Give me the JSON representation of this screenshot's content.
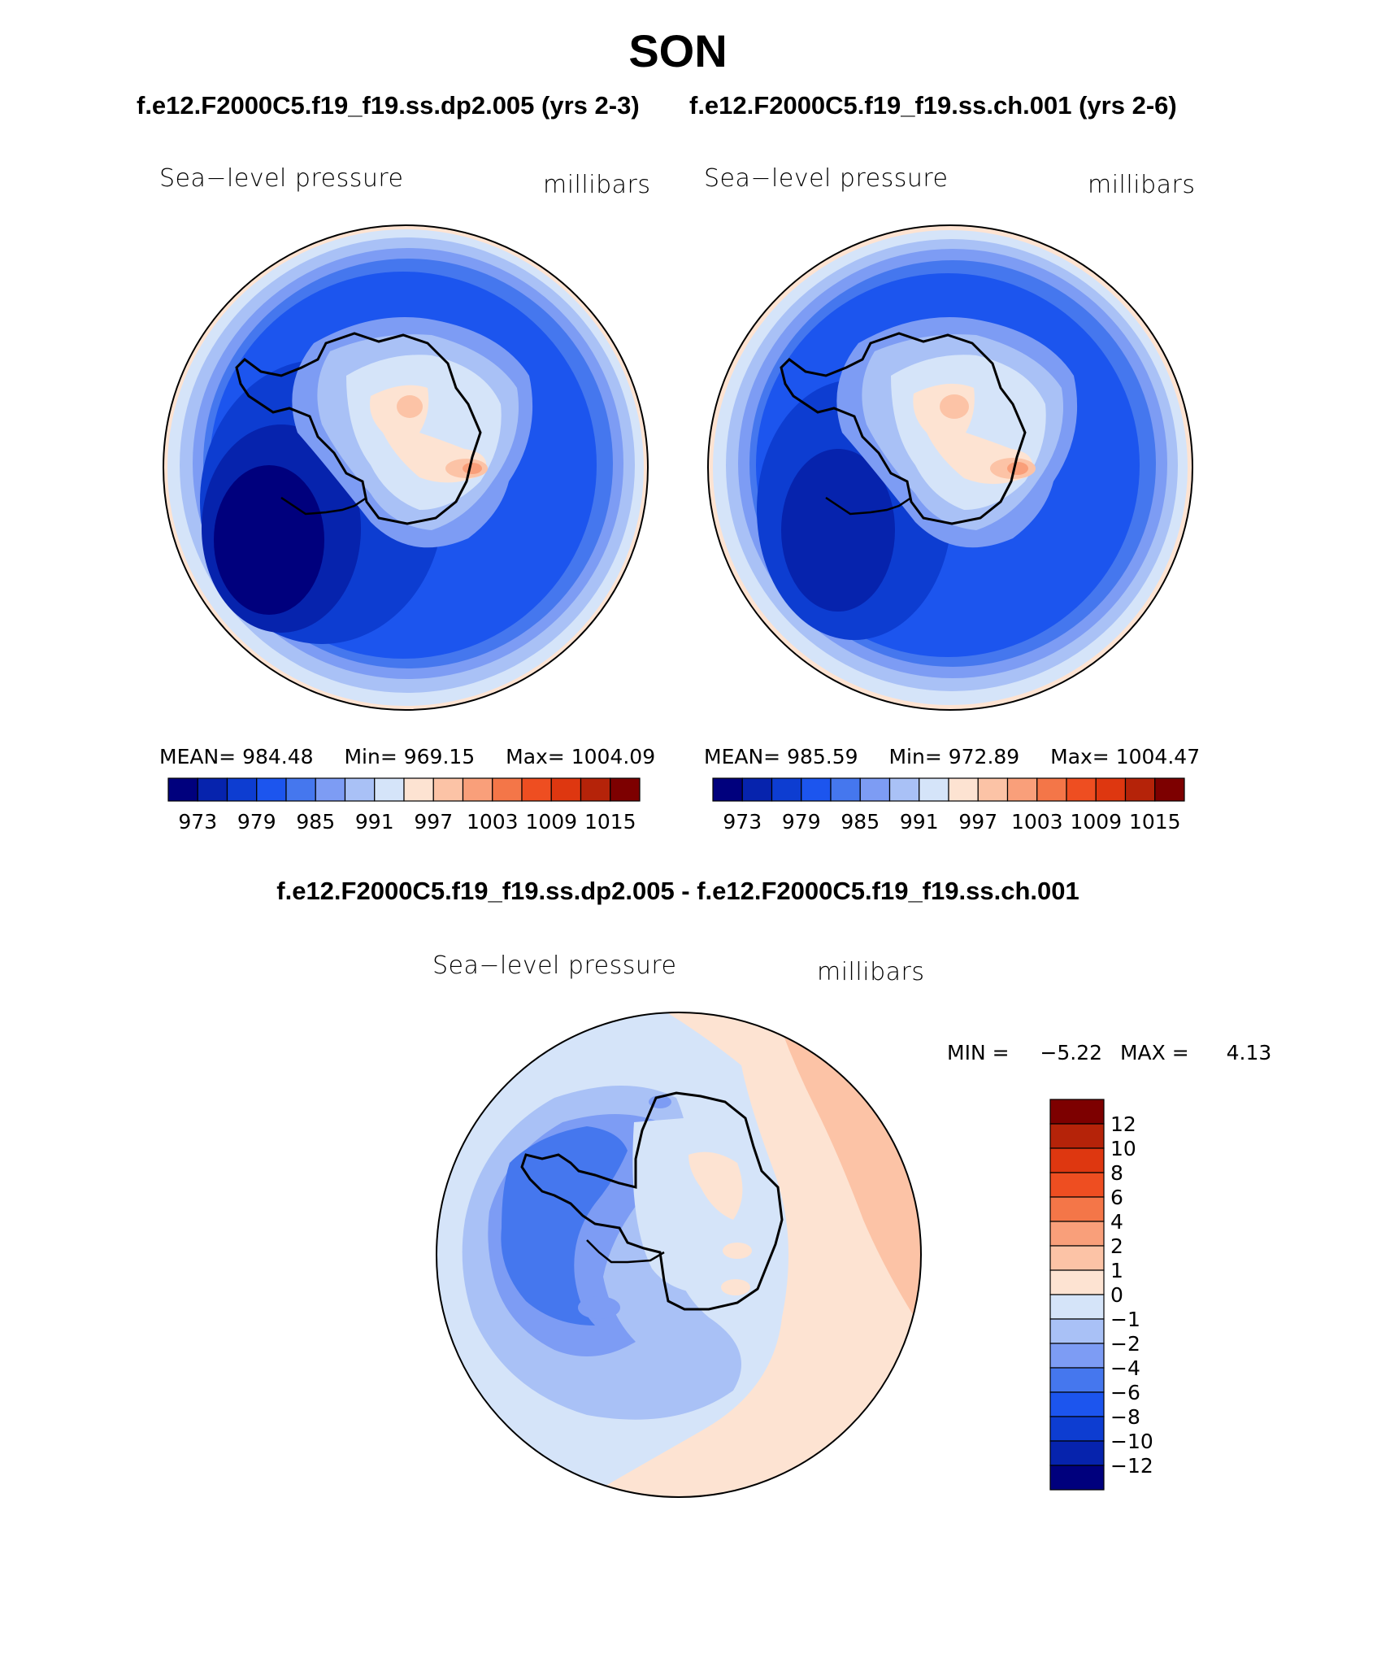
{
  "figure": {
    "season": "SON",
    "case1_title": "f.e12.F2000C5.f19_f19.ss.dp2.005 (yrs 2-3)",
    "case2_title": "f.e12.F2000C5.f19_f19.ss.ch.001 (yrs 2-6)",
    "diff_title": "f.e12.F2000C5.f19_f19.ss.dp2.005 - f.e12.F2000C5.f19_f19.ss.ch.001"
  },
  "panels": [
    {
      "variable": "Sea−level pressure",
      "units": "millibars",
      "mean_label": "MEAN=",
      "mean": "984.48",
      "min_label": "Min=",
      "min": "969.15",
      "max_label": "Max=",
      "max": "1004.09"
    },
    {
      "variable": "Sea−level pressure",
      "units": "millibars",
      "mean_label": "MEAN=",
      "mean": "985.59",
      "min_label": "Min=",
      "min": "972.89",
      "max_label": "Max=",
      "max": "1004.47"
    },
    {
      "variable": "Sea−level pressure",
      "units": "millibars",
      "min_label": "MIN =",
      "min": "−5.22",
      "max_label": "MAX =",
      "max": "4.13"
    }
  ],
  "colors": {
    "abs_scale": [
      "#00007d",
      "#0623ad",
      "#0d3dd1",
      "#1c55ee",
      "#4577ee",
      "#7d9cf4",
      "#a9c1f6",
      "#d5e4f9",
      "#fde3d2",
      "#fcc3a6",
      "#f99f7a",
      "#f47648",
      "#ee4e21",
      "#de3710",
      "#b52309",
      "#7d0000"
    ],
    "diff_scale": [
      "#00007d",
      "#0623ad",
      "#0d3dd1",
      "#1c55ee",
      "#4577ee",
      "#7d9cf4",
      "#a9c1f6",
      "#d5e4f9",
      "#fde3d2",
      "#fcc3a6",
      "#f99f7a",
      "#f47648",
      "#ee4e21",
      "#de3710",
      "#b52309",
      "#7d0000"
    ],
    "coastline": "#000000"
  },
  "chart_data": [
    {
      "type": "heatmap",
      "projection": "south-polar stereographic",
      "title": "Sea−level pressure",
      "units": "millibars",
      "stats": {
        "mean": 984.48,
        "min": 969.15,
        "max": 1004.09
      },
      "contour_levels": [
        970,
        973,
        976,
        979,
        982,
        985,
        988,
        991,
        994,
        997,
        1000,
        1003,
        1006,
        1009,
        1012,
        1015
      ],
      "colorbar_tick_labels": [
        "973",
        "979",
        "985",
        "991",
        "997",
        "1003",
        "1009",
        "1015"
      ],
      "colorbar_orientation": "horizontal"
    },
    {
      "type": "heatmap",
      "projection": "south-polar stereographic",
      "title": "Sea−level pressure",
      "units": "millibars",
      "stats": {
        "mean": 985.59,
        "min": 972.89,
        "max": 1004.47
      },
      "contour_levels": [
        970,
        973,
        976,
        979,
        982,
        985,
        988,
        991,
        994,
        997,
        1000,
        1003,
        1006,
        1009,
        1012,
        1015
      ],
      "colorbar_tick_labels": [
        "973",
        "979",
        "985",
        "991",
        "997",
        "1003",
        "1009",
        "1015"
      ],
      "colorbar_orientation": "horizontal"
    },
    {
      "type": "heatmap",
      "projection": "south-polar stereographic",
      "title": "Sea−level pressure",
      "units": "millibars",
      "stats": {
        "min": -5.22,
        "max": 4.13
      },
      "contour_levels": [
        -12,
        -10,
        -8,
        -6,
        -4,
        -2,
        -1,
        0,
        1,
        2,
        4,
        6,
        8,
        10,
        12
      ],
      "colorbar_tick_labels": [
        "12",
        "10",
        "8",
        "6",
        "4",
        "2",
        "1",
        "0",
        "−1",
        "−2",
        "−4",
        "−6",
        "−8",
        "−10",
        "−12"
      ],
      "colorbar_orientation": "vertical"
    }
  ]
}
